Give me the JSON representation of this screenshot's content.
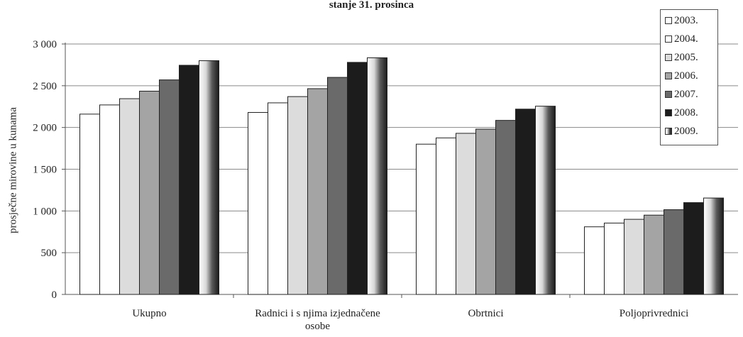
{
  "chart_data": {
    "type": "bar",
    "title": "stanje 31. prosinca",
    "xlabel": "",
    "ylabel": "prosječne mirovine u kunama",
    "ylim": [
      0,
      3000
    ],
    "yticks": [
      "0",
      "500",
      "1 000",
      "1 500",
      "2 000",
      "2 500",
      "3 000"
    ],
    "ytick_values": [
      0,
      500,
      1000,
      1500,
      2000,
      2500,
      3000
    ],
    "grid": true,
    "legend_position": "top-right",
    "categories": [
      "Ukupno",
      "Radnici i s njima izjednačene osobe",
      "Obrtnici",
      "Poljoprivrednici"
    ],
    "series": [
      {
        "name": "2003.",
        "color": "#ffffff",
        "values": [
          2160,
          2180,
          1800,
          810
        ]
      },
      {
        "name": "2004.",
        "color": "#ffffff",
        "values": [
          2270,
          2295,
          1875,
          855
        ]
      },
      {
        "name": "2005.",
        "color": "#dcdcdc",
        "values": [
          2345,
          2370,
          1930,
          900
        ]
      },
      {
        "name": "2006.",
        "color": "#a4a4a4",
        "values": [
          2435,
          2465,
          1980,
          950
        ]
      },
      {
        "name": "2007.",
        "color": "#6a6a6a",
        "values": [
          2570,
          2600,
          2085,
          1015
        ]
      },
      {
        "name": "2008.",
        "color": "#1c1c1c",
        "values": [
          2745,
          2780,
          2220,
          1100
        ]
      },
      {
        "name": "2009.",
        "color": "gradient",
        "values": [
          2800,
          2835,
          2255,
          1155
        ]
      }
    ]
  }
}
